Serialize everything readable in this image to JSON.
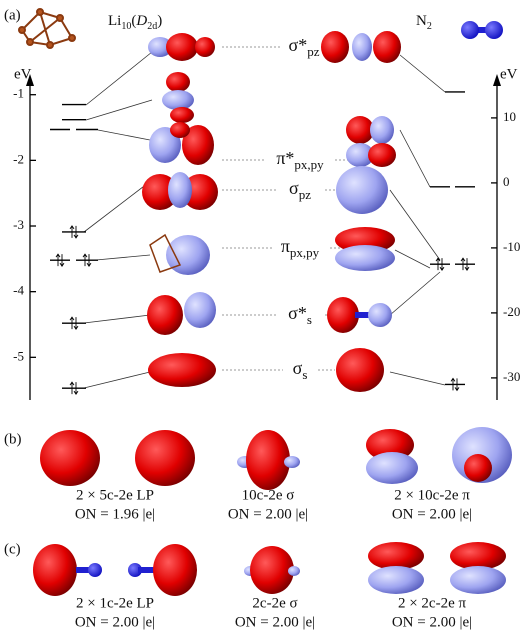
{
  "panel_a": {
    "label": "(a)",
    "li_title": {
      "base": "Li",
      "sub": "10",
      "open": "(",
      "sym": "D",
      "sym_sub": "2d",
      "close": ")"
    },
    "n2_title": {
      "base": "N",
      "sub": "2"
    },
    "left_axis": {
      "label": "eV",
      "lim": [
        -0.7,
        -5.65
      ],
      "ticks": [
        -1,
        -2,
        -3,
        -4,
        -5
      ]
    },
    "right_axis": {
      "label": "eV",
      "lim": [
        16.6,
        -33.4
      ],
      "ticks": [
        10,
        0,
        -10,
        -20,
        -30
      ]
    },
    "li_levels": [
      {
        "energy": -1.15,
        "degeneracy": 1,
        "occupied": false
      },
      {
        "energy": -1.38,
        "degeneracy": 1,
        "occupied": false
      },
      {
        "energy": -1.53,
        "degeneracy": 2,
        "occupied": false
      },
      {
        "energy": -3.09,
        "degeneracy": 1,
        "occupied": true
      },
      {
        "energy": -3.52,
        "degeneracy": 2,
        "occupied": true
      },
      {
        "energy": -4.48,
        "degeneracy": 1,
        "occupied": true
      },
      {
        "energy": -5.47,
        "degeneracy": 1,
        "occupied": true
      }
    ],
    "n2_levels": [
      {
        "energy": 14,
        "degeneracy": 1,
        "occupied": false
      },
      {
        "energy": -0.6,
        "degeneracy": 2,
        "occupied": false
      },
      {
        "energy": -12.5,
        "degeneracy": 2,
        "occupied": true
      },
      {
        "energy": -31,
        "degeneracy": 1,
        "occupied": true
      }
    ],
    "orbitals": [
      {
        "main": "σ*",
        "sub": "pz"
      },
      {
        "main": "π*",
        "sub": "px,py"
      },
      {
        "main": "σ",
        "sub": "pz"
      },
      {
        "main": "π",
        "sub": "px,py"
      },
      {
        "main": "σ*",
        "sub": "s"
      },
      {
        "main": "σ",
        "sub": "s"
      }
    ]
  },
  "panel_b": {
    "label": "(b)",
    "captions": [
      {
        "line1": "2 × 5c-2e LP",
        "line2": "ON = 1.96 |e|"
      },
      {
        "line1": "10c-2e σ",
        "line2": "ON = 2.00 |e|"
      },
      {
        "line1": "2 × 10c-2e π",
        "line2": "ON = 2.00 |e|"
      }
    ]
  },
  "panel_c": {
    "label": "(c)",
    "captions": [
      {
        "line1": "2 × 1c-2e LP",
        "line2": "ON = 2.00 |e|"
      },
      {
        "line1": "2c-2e σ",
        "line2": "ON = 2.00 |e|"
      },
      {
        "line1": "2 × 2c-2e π",
        "line2": "ON = 2.00 |e|"
      }
    ]
  }
}
